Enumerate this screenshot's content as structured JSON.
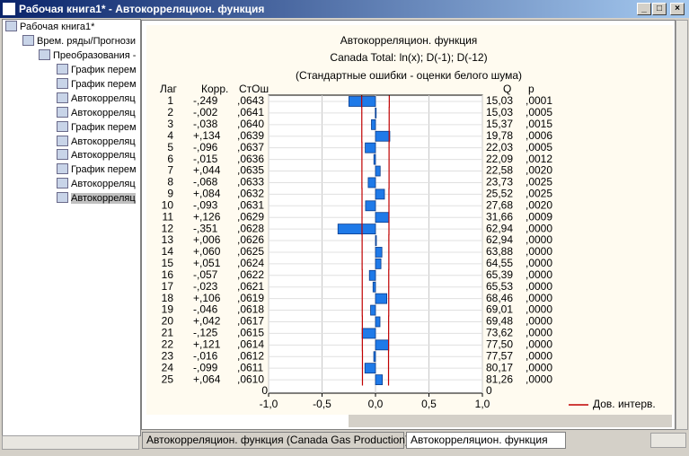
{
  "window": {
    "title": "Рабочая книга1* - Автокорреляцион. функция"
  },
  "tree": {
    "root": "Рабочая книга1*",
    "group": "Врем. ряды/Прогнози",
    "subgroup": "Преобразования -",
    "items": [
      "График перем",
      "График перем",
      "Автокорреляц",
      "Автокорреляц",
      "График перем",
      "Автокорреляц",
      "Автокорреляц",
      "График перем",
      "Автокорреляц",
      "Автокорреляц"
    ]
  },
  "tabs": [
    "Автокорреляцион. функция (Canada Gas Production)",
    "Автокорреляцион. функция"
  ],
  "chart_data": {
    "type": "bar",
    "title": "Автокорреляцион. функция",
    "subtitle": "Canada Total: ln(x); D(-1); D(-12)",
    "note": "(Стандартные ошибки - оценки белого шума)",
    "headers": {
      "lag": "Лаг",
      "corr": "Корр.",
      "se": "СтОш",
      "q": "Q",
      "p": "p"
    },
    "categories": [
      1,
      2,
      3,
      4,
      5,
      6,
      7,
      8,
      9,
      10,
      11,
      12,
      13,
      14,
      15,
      16,
      17,
      18,
      19,
      20,
      21,
      22,
      23,
      24,
      25
    ],
    "series": [
      {
        "name": "Корр.",
        "color": "#1f7ae8",
        "values": [
          -0.249,
          -0.002,
          -0.038,
          0.134,
          -0.096,
          -0.015,
          0.044,
          -0.068,
          0.084,
          -0.093,
          0.126,
          -0.351,
          0.006,
          0.06,
          0.051,
          -0.057,
          -0.023,
          0.106,
          -0.046,
          0.042,
          -0.125,
          0.121,
          -0.016,
          -0.099,
          0.064
        ],
        "value_labels": [
          "-,249",
          "-,002",
          "-,038",
          "+,134",
          "-,096",
          "-,015",
          "+,044",
          "-,068",
          "+,084",
          "-,093",
          "+,126",
          "-,351",
          "+,006",
          "+,060",
          "+,051",
          "-,057",
          "-,023",
          "+,106",
          "-,046",
          "+,042",
          "-,125",
          "+,121",
          "-,016",
          "-,099",
          "+,064"
        ]
      }
    ],
    "se": {
      "values": [
        0.0643,
        0.0641,
        0.064,
        0.0639,
        0.0637,
        0.0636,
        0.0635,
        0.0633,
        0.0632,
        0.0631,
        0.0629,
        0.0628,
        0.0626,
        0.0625,
        0.0624,
        0.0622,
        0.0621,
        0.0619,
        0.0618,
        0.0617,
        0.0615,
        0.0614,
        0.0612,
        0.0611,
        0.061
      ],
      "value_labels": [
        ",0643",
        ",0641",
        ",0640",
        ",0639",
        ",0637",
        ",0636",
        ",0635",
        ",0633",
        ",0632",
        ",0631",
        ",0629",
        ",0628",
        ",0626",
        ",0625",
        ",0624",
        ",0622",
        ",0621",
        ",0619",
        ",0618",
        ",0617",
        ",0615",
        ",0614",
        ",0612",
        ",0611",
        ",0610"
      ]
    },
    "q": {
      "values": [
        15.03,
        15.03,
        15.37,
        19.78,
        22.03,
        22.09,
        22.58,
        23.73,
        25.52,
        27.68,
        31.66,
        62.94,
        62.94,
        63.88,
        64.55,
        65.39,
        65.53,
        68.46,
        69.01,
        69.48,
        73.62,
        77.5,
        77.57,
        80.17,
        81.26
      ],
      "value_labels": [
        "15,03",
        "15,03",
        "15,37",
        "19,78",
        "22,03",
        "22,09",
        "22,58",
        "23,73",
        "25,52",
        "27,68",
        "31,66",
        "62,94",
        "62,94",
        "63,88",
        "64,55",
        "65,39",
        "65,53",
        "68,46",
        "69,01",
        "69,48",
        "73,62",
        "77,50",
        "77,57",
        "80,17",
        "81,26"
      ]
    },
    "p": {
      "values": [
        0.0001,
        0.0005,
        0.0015,
        0.0006,
        0.0005,
        0.0012,
        0.002,
        0.0025,
        0.0025,
        0.002,
        0.0009,
        0,
        0,
        0,
        0,
        0,
        0,
        0,
        0,
        0,
        0,
        0,
        0,
        0,
        0
      ],
      "value_labels": [
        ",0001",
        ",0005",
        ",0015",
        ",0006",
        ",0005",
        ",0012",
        ",0020",
        ",0025",
        ",0025",
        ",0020",
        ",0009",
        ",0000",
        ",0000",
        ",0000",
        ",0000",
        ",0000",
        ",0000",
        ",0000",
        ",0000",
        ",0000",
        ",0000",
        ",0000",
        ",0000",
        ",0000",
        ",0000"
      ]
    },
    "zero_labels": {
      "lag": "0",
      "q": "0"
    },
    "confidence": {
      "name": "Дов. интерв.",
      "color": "#c00000",
      "upper": [
        0.129,
        0.128,
        0.128,
        0.128,
        0.127,
        0.127,
        0.127,
        0.127,
        0.126,
        0.126,
        0.126,
        0.126,
        0.125,
        0.125,
        0.125,
        0.124,
        0.124,
        0.124,
        0.124,
        0.123,
        0.123,
        0.123,
        0.122,
        0.122,
        0.122
      ],
      "lower": [
        -0.129,
        -0.128,
        -0.128,
        -0.128,
        -0.127,
        -0.127,
        -0.127,
        -0.127,
        -0.126,
        -0.126,
        -0.126,
        -0.126,
        -0.125,
        -0.125,
        -0.125,
        -0.124,
        -0.124,
        -0.124,
        -0.124,
        -0.123,
        -0.123,
        -0.123,
        -0.122,
        -0.122,
        -0.122
      ]
    },
    "xlim": [
      -1,
      1
    ],
    "xticks": [
      {
        "value": -1,
        "label": "-1,0"
      },
      {
        "value": -0.5,
        "label": "-0,5"
      },
      {
        "value": 0,
        "label": "0,0"
      },
      {
        "value": 0.5,
        "label": "0,5"
      },
      {
        "value": 1,
        "label": "1,0"
      }
    ],
    "grid": true,
    "legend": "bottom-right"
  }
}
